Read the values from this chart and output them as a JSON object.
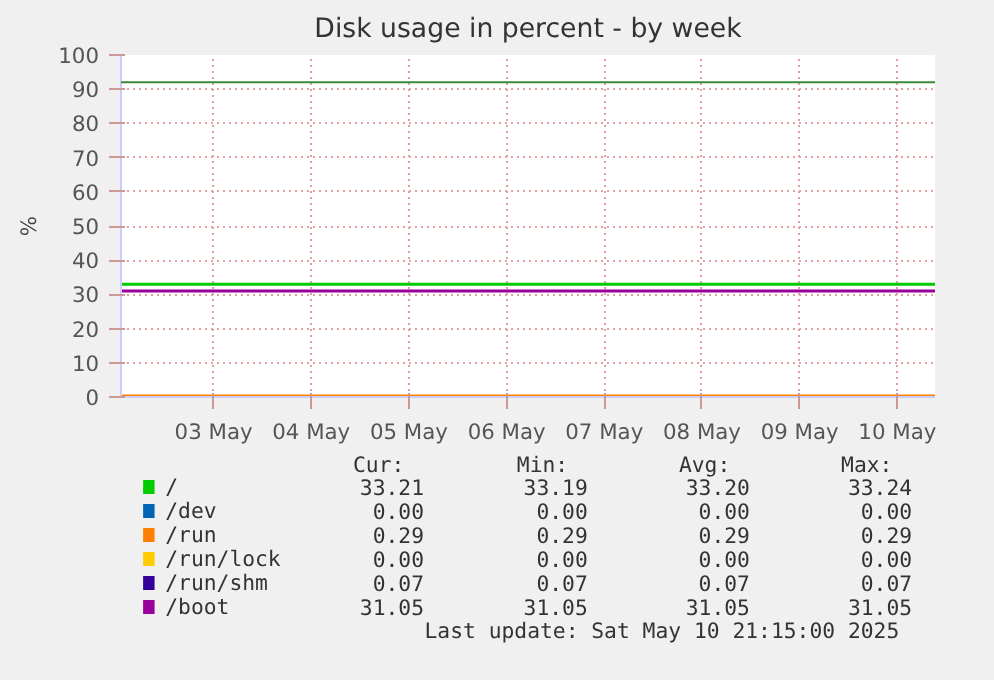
{
  "chart_data": {
    "type": "line",
    "title": "Disk usage in percent - by week",
    "ylabel": "%",
    "x": [
      "2025-05-02T13:15",
      "2025-05-10T21:15"
    ],
    "xlim": [
      "2025-05-02T13:15",
      "2025-05-10T21:15"
    ],
    "xticks": [
      {
        "value": "2025-05-03T12:00",
        "label": "03 May"
      },
      {
        "value": "2025-05-04T12:00",
        "label": "04 May"
      },
      {
        "value": "2025-05-05T12:00",
        "label": "05 May"
      },
      {
        "value": "2025-05-06T12:00",
        "label": "06 May"
      },
      {
        "value": "2025-05-07T12:00",
        "label": "07 May"
      },
      {
        "value": "2025-05-08T12:00",
        "label": "08 May"
      },
      {
        "value": "2025-05-09T12:00",
        "label": "09 May"
      },
      {
        "value": "2025-05-10T12:00",
        "label": "10 May"
      }
    ],
    "ylim": [
      0,
      100
    ],
    "yticks": [
      0,
      10,
      20,
      30,
      40,
      50,
      60,
      70,
      80,
      90,
      100
    ],
    "grid": true,
    "legend": "bottom",
    "marker": "none",
    "line_style": "solid",
    "series": [
      {
        "name": "/",
        "color": "#00cc00",
        "values": [
          33,
          33
        ]
      },
      {
        "name": "/dev",
        "color": "#0066b3",
        "values": [
          null,
          null
        ]
      },
      {
        "name": "/run",
        "color": "#ff8000",
        "values": [
          0.3,
          0.3
        ]
      },
      {
        "name": "/run/lock",
        "color": "#ffcc00",
        "values": [
          null,
          null
        ]
      },
      {
        "name": "/run/shm",
        "color": "#330099",
        "values": [
          null,
          null
        ]
      },
      {
        "name": "/boot",
        "color": "#990099",
        "values": [
          31,
          31
        ]
      }
    ],
    "ref_lines": [
      {
        "axis": "y",
        "value": 92,
        "label": null,
        "color": "#3a8a3a"
      }
    ],
    "annotations": [
      "Cur:",
      "Min:",
      "Avg:",
      "Max:",
      "33.21",
      "33.19",
      "33.20",
      "33.24",
      "0.00",
      "0.00",
      "0.00",
      "0.00",
      "0.29",
      "0.29",
      "0.29",
      "0.29",
      "0.00",
      "0.00",
      "0.00",
      "0.00",
      "0.07",
      "0.07",
      "0.07",
      "0.07",
      "31.05",
      "31.05",
      "31.05",
      "31.05",
      "Last update:  Sat May 10 21:15:00 2025"
    ]
  }
}
